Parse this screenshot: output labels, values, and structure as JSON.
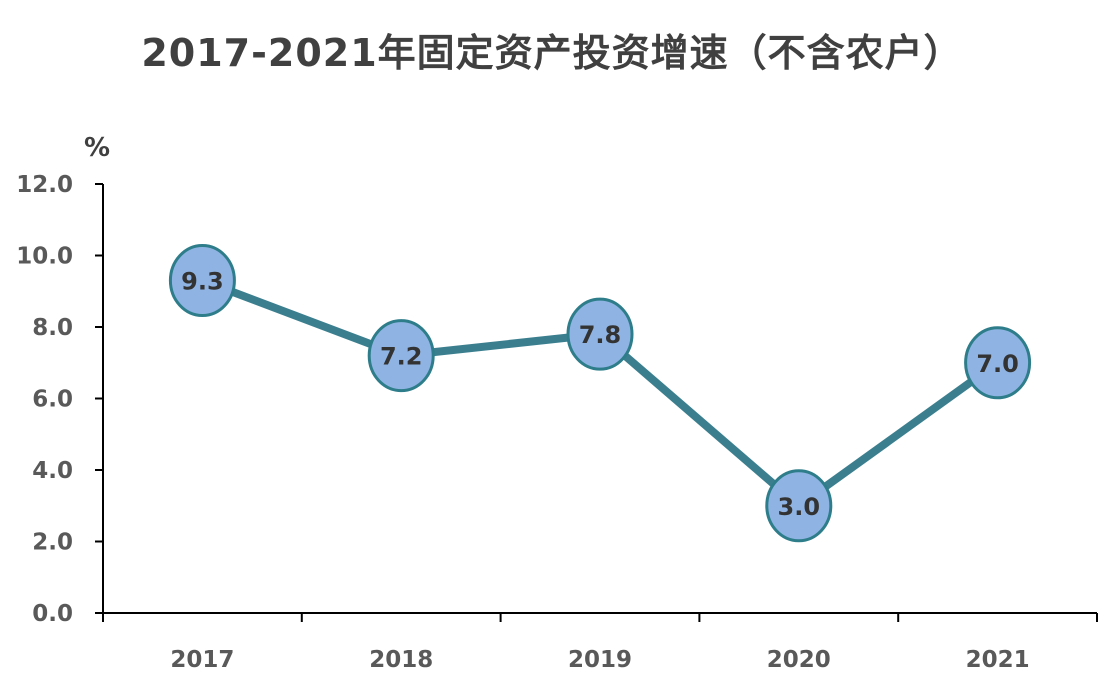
{
  "chart_data": {
    "type": "line",
    "title": "2017-2021年固定资产投资增速（不含农户）",
    "ylabel": "%",
    "xlabel": "",
    "categories": [
      "2017",
      "2018",
      "2019",
      "2020",
      "2021"
    ],
    "series": [
      {
        "values": [
          9.3,
          7.2,
          7.8,
          3.0,
          7.0
        ]
      }
    ],
    "data_labels": [
      "9.3",
      "7.2",
      "7.8",
      "3.0",
      "7.0"
    ],
    "y_ticks": [
      "0.0",
      "2.0",
      "4.0",
      "6.0",
      "8.0",
      "10.0",
      "12.0"
    ],
    "ylim": [
      0,
      12
    ],
    "grid": false,
    "legend": "none",
    "colors": {
      "line": "#3b7f8f",
      "marker_fill": "#8fb4e3",
      "marker_stroke": "#2e7d8a",
      "axis": "#000000"
    }
  }
}
